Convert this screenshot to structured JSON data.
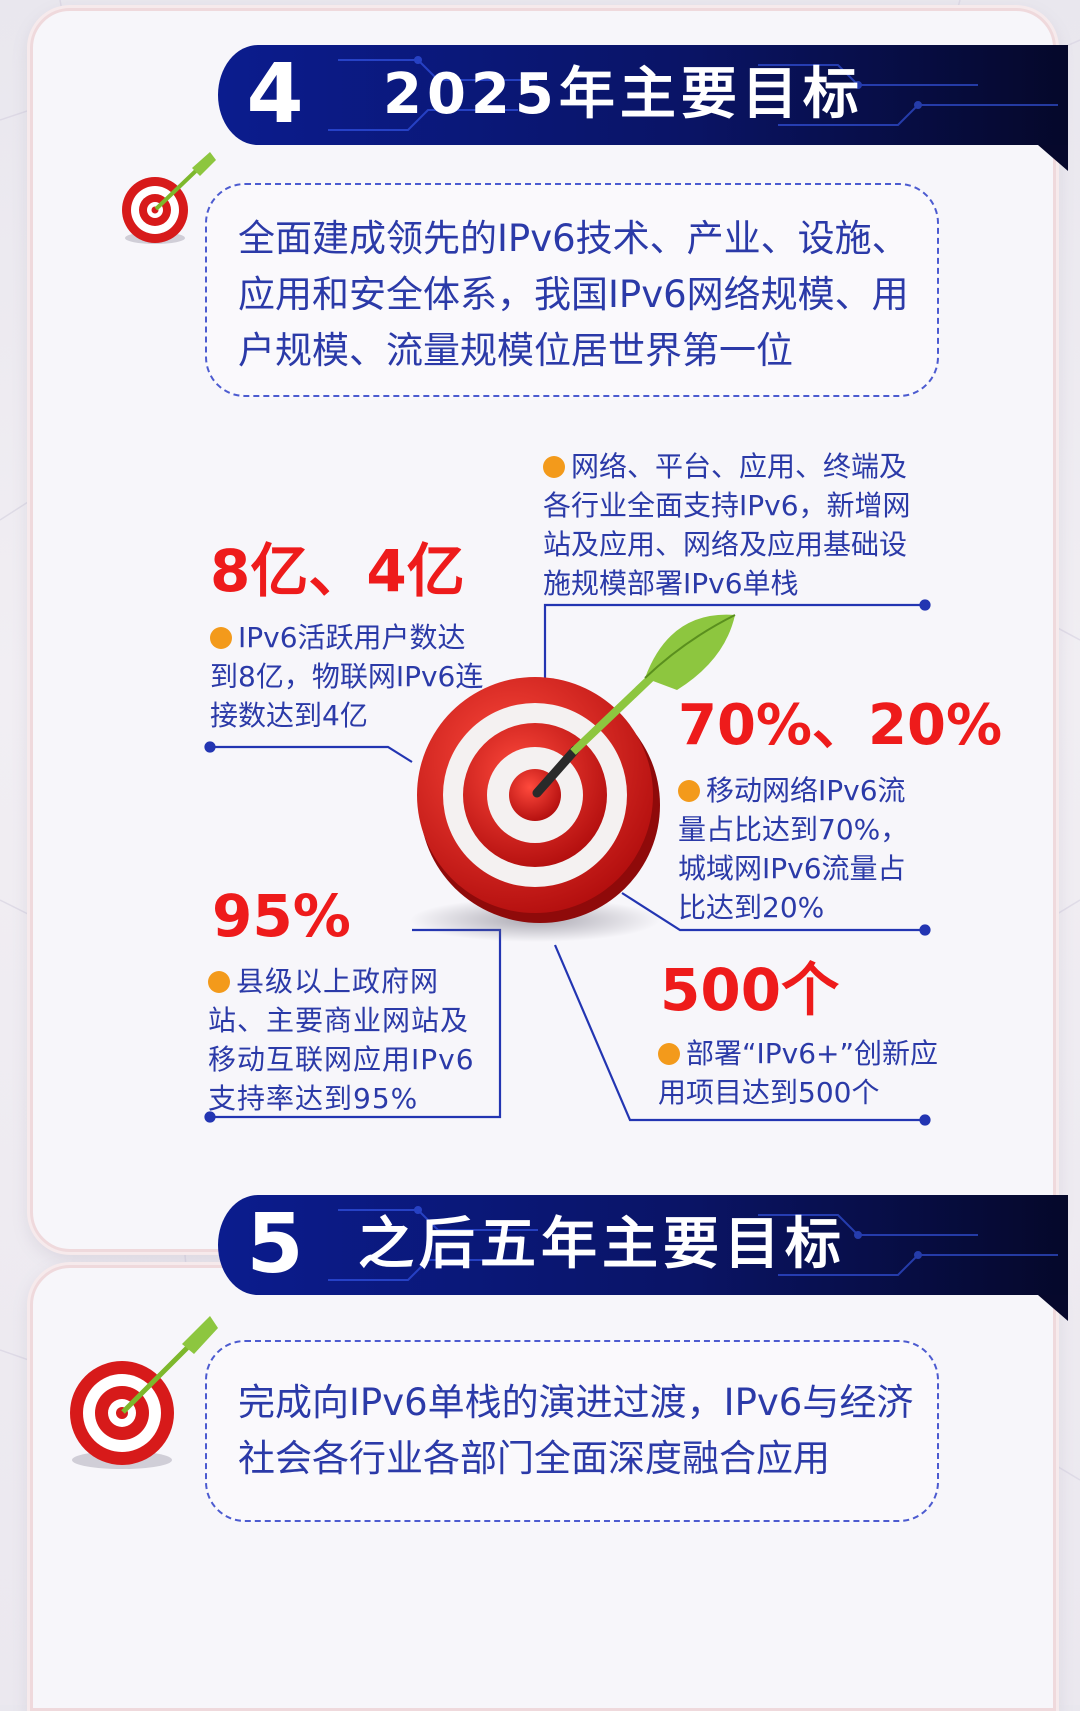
{
  "section4": {
    "number": "4",
    "title": "2025年主要目标",
    "intro": "全面建成领先的IPv6技术、产业、设施、应用和安全体系，我国IPv6网络规模、用户规模、流量规模位居世界第一位",
    "goals": {
      "top_right": {
        "text": "网络、平台、应用、终端及各行业全面支持IPv6，新增网站及应用、网络及应用基础设施规模部署IPv6单栈"
      },
      "users": {
        "value": "8亿、4亿",
        "text": "IPv6活跃用户数达到8亿，物联网IPv6连接数达到4亿"
      },
      "traffic": {
        "value": "70%、20%",
        "text": "移动网络IPv6流量占比达到70%，城域网IPv6流量占比达到20%"
      },
      "websites": {
        "value": "95%",
        "text": "县级以上政府网站、主要商业网站及移动互联网应用IPv6支持率达到95%"
      },
      "innovation": {
        "value": "500个",
        "text": "部署“IPv6+”创新应用项目达到500个"
      }
    }
  },
  "section5": {
    "number": "5",
    "title": "之后五年主要目标",
    "intro": "完成向IPv6单栈的演进过渡，IPv6与经济社会各行业各部门全面深度融合应用"
  },
  "colors": {
    "banner": "#0a1e96",
    "banner_dark": "#060b33",
    "text_blue": "#2b3aa8",
    "value_red": "#ee1b1b",
    "bullet_orange": "#f39a1b",
    "line_blue": "#2335b2"
  },
  "icons": [
    "target-dart-icon",
    "bullet-dot-icon"
  ]
}
